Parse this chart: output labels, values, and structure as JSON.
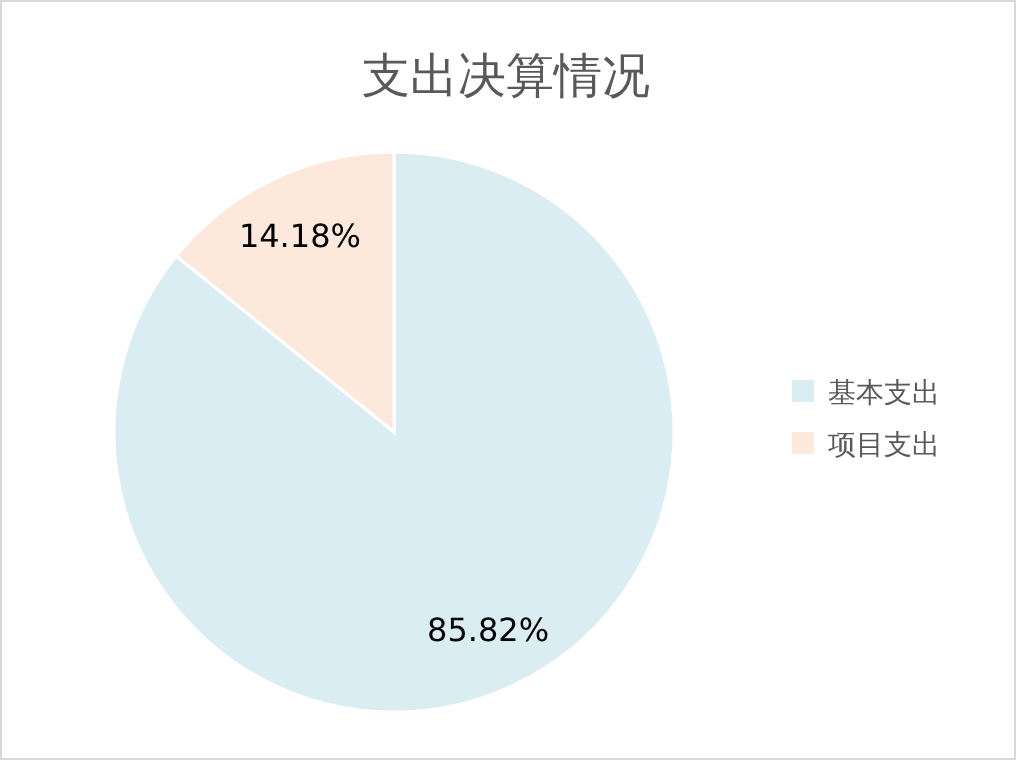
{
  "chart_data": {
    "type": "pie",
    "title": "支出决算情况",
    "categories": [
      "基本支出",
      "项目支出"
    ],
    "values": [
      85.82,
      14.18
    ],
    "colors": [
      "#daedf3",
      "#fde9db"
    ],
    "value_labels": [
      "85.82%",
      "14.18%"
    ],
    "legend": "right"
  }
}
